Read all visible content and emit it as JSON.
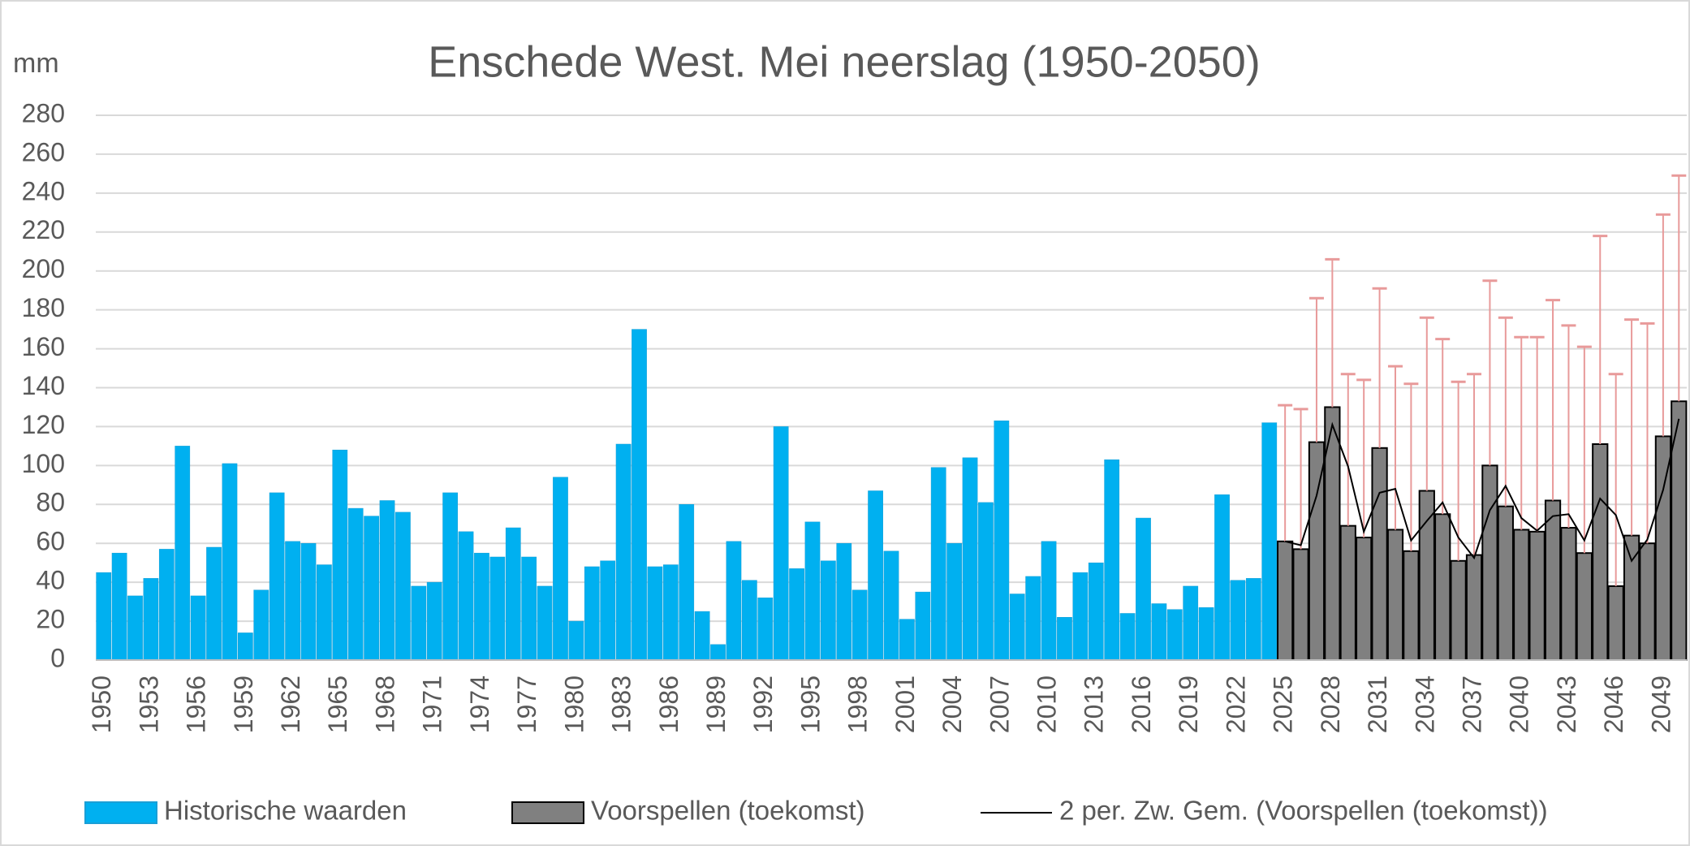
{
  "chart_data": {
    "type": "bar",
    "title": "Enschede West. Mei neerslag (1950-2050)",
    "y_label": "mm",
    "categories": [
      "1950",
      null,
      null,
      "1953",
      null,
      null,
      "1956",
      null,
      null,
      "1959",
      null,
      null,
      "1962",
      null,
      null,
      "1965",
      null,
      null,
      "1968",
      null,
      null,
      "1971",
      null,
      null,
      "1974",
      null,
      null,
      "1977",
      null,
      null,
      "1980",
      null,
      null,
      "1983",
      null,
      null,
      "1986",
      null,
      null,
      "1989",
      null,
      null,
      "1992",
      null,
      null,
      "1995",
      null,
      null,
      "1998",
      null,
      null,
      "2001",
      null,
      null,
      "2004",
      null,
      null,
      "2007",
      null,
      null,
      "2010",
      null,
      null,
      "2013",
      null,
      null,
      "2016",
      null,
      null,
      "2019",
      null,
      null,
      "2022",
      null,
      null,
      "2025",
      null,
      null,
      "2028",
      null,
      null,
      "2031",
      null,
      null,
      "2034",
      null,
      null,
      "2037",
      null,
      null,
      "2040",
      null,
      null,
      "2043",
      null,
      null,
      "2046",
      null,
      null,
      "2049",
      null
    ],
    "ylim": [
      0,
      280
    ],
    "yticks": [
      0,
      20,
      40,
      60,
      80,
      100,
      120,
      140,
      160,
      180,
      200,
      220,
      240,
      260,
      280
    ],
    "grid": true,
    "legend": "bottom",
    "series": [
      {
        "name": "Historische waarden",
        "type": "bar",
        "color": "#00b0f0",
        "values": [
          45,
          55,
          33,
          42,
          57,
          110,
          33,
          58,
          101,
          14,
          36,
          86,
          61,
          60,
          49,
          108,
          78,
          74,
          82,
          76,
          38,
          40,
          86,
          66,
          55,
          53,
          68,
          53,
          38,
          94,
          20,
          48,
          51,
          111,
          170,
          48,
          49,
          80,
          25,
          8,
          61,
          41,
          32,
          120,
          47,
          71,
          51,
          60,
          36,
          87,
          56,
          21,
          35,
          99,
          60,
          104,
          81,
          123,
          34,
          43,
          61,
          22,
          45,
          50,
          103,
          24,
          73,
          29,
          26,
          38,
          27,
          85,
          41,
          42,
          122,
          null,
          null,
          null,
          null,
          null,
          null,
          null,
          null,
          null,
          null,
          null,
          null,
          null,
          null,
          null,
          null,
          null,
          null,
          null,
          null,
          null,
          null,
          null,
          null,
          null,
          null
        ]
      },
      {
        "name": "Voorspellen (toekomst)",
        "type": "bar",
        "color": "#808080",
        "error_color": "#e89a9a",
        "values": [
          null,
          null,
          null,
          null,
          null,
          null,
          null,
          null,
          null,
          null,
          null,
          null,
          null,
          null,
          null,
          null,
          null,
          null,
          null,
          null,
          null,
          null,
          null,
          null,
          null,
          null,
          null,
          null,
          null,
          null,
          null,
          null,
          null,
          null,
          null,
          null,
          null,
          null,
          null,
          null,
          null,
          null,
          null,
          null,
          null,
          null,
          null,
          null,
          null,
          null,
          null,
          null,
          null,
          null,
          null,
          null,
          null,
          null,
          null,
          null,
          null,
          null,
          null,
          null,
          null,
          null,
          null,
          null,
          null,
          null,
          null,
          null,
          null,
          null,
          null,
          61,
          57,
          112,
          130,
          69,
          63,
          109,
          67,
          56,
          87,
          75,
          51,
          54,
          100,
          79,
          67,
          66,
          82,
          68,
          55,
          111,
          38,
          64,
          60,
          115,
          133
        ],
        "errors": [
          null,
          null,
          null,
          null,
          null,
          null,
          null,
          null,
          null,
          null,
          null,
          null,
          null,
          null,
          null,
          null,
          null,
          null,
          null,
          null,
          null,
          null,
          null,
          null,
          null,
          null,
          null,
          null,
          null,
          null,
          null,
          null,
          null,
          null,
          null,
          null,
          null,
          null,
          null,
          null,
          null,
          null,
          null,
          null,
          null,
          null,
          null,
          null,
          null,
          null,
          null,
          null,
          null,
          null,
          null,
          null,
          null,
          null,
          null,
          null,
          null,
          null,
          null,
          null,
          null,
          null,
          null,
          null,
          null,
          null,
          null,
          null,
          null,
          null,
          null,
          70,
          72,
          74,
          76,
          78,
          81,
          82,
          84,
          86,
          89,
          90,
          92,
          93,
          95,
          97,
          99,
          100,
          103,
          104,
          106,
          107,
          109,
          111,
          113,
          114,
          116
        ]
      },
      {
        "name": "2 per. Zw. Gem. (Voorspellen (toekomst))",
        "type": "line",
        "color": "#000000",
        "values": [
          null,
          null,
          null,
          null,
          null,
          null,
          null,
          null,
          null,
          null,
          null,
          null,
          null,
          null,
          null,
          null,
          null,
          null,
          null,
          null,
          null,
          null,
          null,
          null,
          null,
          null,
          null,
          null,
          null,
          null,
          null,
          null,
          null,
          null,
          null,
          null,
          null,
          null,
          null,
          null,
          null,
          null,
          null,
          null,
          null,
          null,
          null,
          null,
          null,
          null,
          null,
          null,
          null,
          null,
          null,
          null,
          null,
          null,
          null,
          null,
          null,
          null,
          null,
          null,
          null,
          null,
          null,
          null,
          null,
          null,
          null,
          null,
          null,
          null,
          null,
          61,
          59,
          84.5,
          121,
          99.5,
          66,
          86,
          88,
          61.5,
          71.5,
          81,
          63,
          52.5,
          77,
          89.5,
          73,
          66.5,
          74,
          75,
          61.5,
          83,
          74.5,
          51,
          62,
          87.5,
          124
        ]
      }
    ]
  }
}
